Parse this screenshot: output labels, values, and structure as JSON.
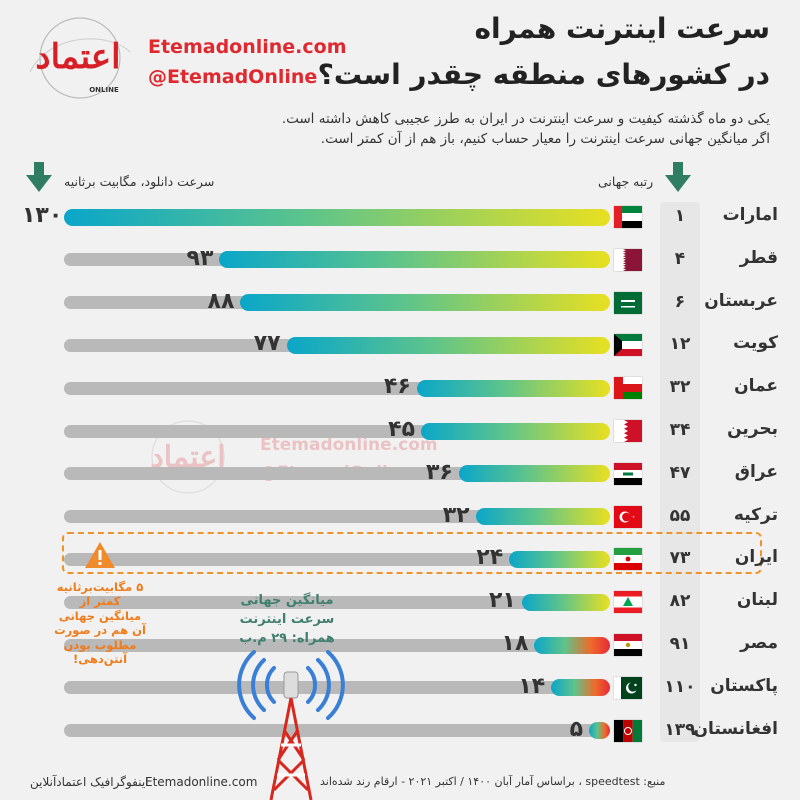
{
  "header": {
    "title_line1": "سرعت اینترنت همراه",
    "title_line2": "در کشورهای منطقه چقدر است؟",
    "sub_line1": "یکی دو ماه گذشته کیفیت و سرعت اینترنت در ایران به طرز عجیبی کاهش داشته است.",
    "sub_line2": "اگر میانگین جهانی سرعت اینترنت را معیار حساب کنیم، باز هم از آن کمتر است.",
    "site": "Etemadonline.com",
    "handle": "@EtemadOnline",
    "logo_text": "اعتماد",
    "logo_sub": "ONLINE"
  },
  "columns": {
    "rank_label": "رتبه جهانی",
    "speed_label": "سرعت دانلود، مگابیت برثانیه"
  },
  "chart_data": {
    "type": "bar",
    "xlabel": "سرعت دانلود، مگابیت برثانیه",
    "ylabel": "",
    "xlim": [
      0,
      130
    ],
    "rows": [
      {
        "country": "امارات",
        "rank": "۱",
        "value": 130,
        "value_label": "۱۳۰",
        "flag": "uae"
      },
      {
        "country": "قطر",
        "rank": "۴",
        "value": 93,
        "value_label": "۹۳",
        "flag": "qatar"
      },
      {
        "country": "عربستان",
        "rank": "۶",
        "value": 88,
        "value_label": "۸۸",
        "flag": "saudi"
      },
      {
        "country": "کویت",
        "rank": "۱۲",
        "value": 77,
        "value_label": "۷۷",
        "flag": "kuwait"
      },
      {
        "country": "عمان",
        "rank": "۳۲",
        "value": 46,
        "value_label": "۴۶",
        "flag": "oman"
      },
      {
        "country": "بحرین",
        "rank": "۳۴",
        "value": 45,
        "value_label": "۴۵",
        "flag": "bahrain"
      },
      {
        "country": "عراق",
        "rank": "۴۷",
        "value": 36,
        "value_label": "۳۶",
        "flag": "iraq"
      },
      {
        "country": "ترکیه",
        "rank": "۵۵",
        "value": 32,
        "value_label": "۳۲",
        "flag": "turkey"
      },
      {
        "country": "ایران",
        "rank": "۷۳",
        "value": 24,
        "value_label": "۲۴",
        "flag": "iran"
      },
      {
        "country": "لبنان",
        "rank": "۸۲",
        "value": 21,
        "value_label": "۲۱",
        "flag": "lebanon"
      },
      {
        "country": "مصر",
        "rank": "۹۱",
        "value": 18,
        "value_label": "۱۸",
        "flag": "egypt"
      },
      {
        "country": "پاکستان",
        "rank": "۱۱۰",
        "value": 14,
        "value_label": "۱۴",
        "flag": "pakistan"
      },
      {
        "country": "افغانستان",
        "rank": "۱۳۹",
        "value": 5,
        "value_label": "۵",
        "flag": "afghanistan"
      }
    ],
    "highlight_country": "ایران"
  },
  "annotations": {
    "iran_note": "۵ مگابیت‌برثانیه\nکمتر از\nمیانگین جهانی\nآن هم در صورت\nمطلوب بودن\nآنتن‌دهی!",
    "world_avg": "میانگین جهانی\nسرعت اینترنت\nهمراه: ۲۹ م.ب"
  },
  "footer": {
    "source": "منبع: speedtest ، براساس آمار آبان ۱۴۰۰ / اکتبر ۲۰۲۱ - ارقام رند شده‌اند",
    "brand": "اینفوگرافیک اعتمادآنلاین",
    "site": "Etemadonline.com"
  },
  "colors": {
    "gradient_start": "#0aa6c9",
    "gradient_mid": "#5ec48b",
    "gradient_end": "#e8e021",
    "warm_start": "#ef6a2a",
    "warm_end": "#e52b38",
    "arrow": "#2f7d63",
    "brand_red": "#e0282f",
    "accent_orange": "#f0932b"
  }
}
